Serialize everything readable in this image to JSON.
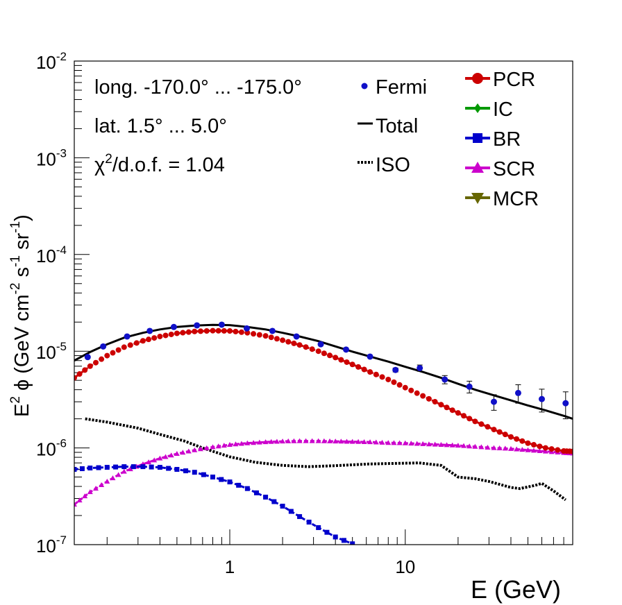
{
  "chart_data": {
    "type": "line",
    "xlabel": "E (GeV)",
    "ylabel_parts": [
      "E",
      "2",
      " ϕ (GeV cm",
      "-2",
      " s",
      "-1",
      " sr",
      "-1",
      ")"
    ],
    "x_scale": "log",
    "y_scale": "log",
    "xlim": [
      0.13,
      90
    ],
    "ylim": [
      1e-07,
      0.01
    ],
    "x_tick_labels": [
      {
        "value": 1,
        "label": "1"
      },
      {
        "value": 10,
        "label": "10"
      }
    ],
    "y_tick_labels": [
      {
        "exp": -7,
        "base": "10",
        "sup": "-7"
      },
      {
        "exp": -6,
        "base": "10",
        "sup": "-6"
      },
      {
        "exp": -5,
        "base": "10",
        "sup": "-5"
      },
      {
        "exp": -4,
        "base": "10",
        "sup": "-4"
      },
      {
        "exp": -3,
        "base": "10",
        "sup": "-3"
      },
      {
        "exp": -2,
        "base": "10",
        "sup": "-2"
      }
    ],
    "annotations": {
      "longitude": "long. -170.0° ... -175.0°",
      "latitude": "lat. 1.5° ... 5.0°",
      "chi_prefix": "χ",
      "chi_sup": "2",
      "chi_suffix": "/d.o.f. = 1.04"
    },
    "legend_left": [
      {
        "key": "fermi",
        "label": "Fermi",
        "color": "#1010c8",
        "marker": "circle"
      },
      {
        "key": "total",
        "label": "Total",
        "color": "#000000",
        "marker": "line"
      },
      {
        "key": "iso",
        "label": "ISO",
        "color": "#000000",
        "marker": "dotted"
      }
    ],
    "legend_right": [
      {
        "key": "pcr",
        "label": "PCR",
        "color": "#cc0000",
        "marker": "circle"
      },
      {
        "key": "ic",
        "label": "IC",
        "color": "#009900",
        "marker": "diamond"
      },
      {
        "key": "br",
        "label": "BR",
        "color": "#0000cc",
        "marker": "square"
      },
      {
        "key": "scr",
        "label": "SCR",
        "color": "#cc00cc",
        "marker": "triangle-up"
      },
      {
        "key": "mcr",
        "label": "MCR",
        "color": "#666600",
        "marker": "triangle-down"
      }
    ],
    "fermi": {
      "color": "#1010c8",
      "points": [
        {
          "x": 0.155,
          "y": 8.7e-06,
          "err": 0
        },
        {
          "x": 0.19,
          "y": 1.12e-05,
          "err": 0
        },
        {
          "x": 0.26,
          "y": 1.42e-05,
          "err": 0
        },
        {
          "x": 0.35,
          "y": 1.62e-05,
          "err": 0
        },
        {
          "x": 0.48,
          "y": 1.78e-05,
          "err": 0
        },
        {
          "x": 0.65,
          "y": 1.85e-05,
          "err": 0
        },
        {
          "x": 0.9,
          "y": 1.88e-05,
          "err": 0
        },
        {
          "x": 1.25,
          "y": 1.72e-05,
          "err": 0
        },
        {
          "x": 1.75,
          "y": 1.62e-05,
          "err": 0
        },
        {
          "x": 2.4,
          "y": 1.42e-05,
          "err": 0
        },
        {
          "x": 3.3,
          "y": 1.18e-05,
          "err": 0
        },
        {
          "x": 4.6,
          "y": 1.04e-05,
          "err": 0
        },
        {
          "x": 6.3,
          "y": 8.8e-06,
          "err": 0
        },
        {
          "x": 8.8,
          "y": 6.4e-06,
          "err": 3e-07
        },
        {
          "x": 12.1,
          "y": 6.7e-06,
          "err": 5e-07
        },
        {
          "x": 16.8,
          "y": 5.1e-06,
          "err": 5e-07
        },
        {
          "x": 23.2,
          "y": 4.3e-06,
          "err": 6e-07
        },
        {
          "x": 32.0,
          "y": 3e-06,
          "err": 5.5e-07
        },
        {
          "x": 44.0,
          "y": 3.7e-06,
          "err": 8e-07
        },
        {
          "x": 60.0,
          "y": 3.2e-06,
          "err": 8.5e-07
        },
        {
          "x": 82.0,
          "y": 2.9e-06,
          "err": 9e-07
        }
      ]
    },
    "total": {
      "color": "#000000",
      "x": [
        0.13,
        0.16,
        0.2,
        0.25,
        0.32,
        0.4,
        0.5,
        0.63,
        0.8,
        1.0,
        1.26,
        1.6,
        2.0,
        2.5,
        3.2,
        4.0,
        5.0,
        6.3,
        8.0,
        10,
        12.6,
        16,
        20,
        25,
        32,
        40,
        50,
        63,
        80,
        90
      ],
      "y": [
        8e-06,
        9.8e-06,
        1.18e-05,
        1.38e-05,
        1.55e-05,
        1.68e-05,
        1.78e-05,
        1.84e-05,
        1.87e-05,
        1.86e-05,
        1.78e-05,
        1.68e-05,
        1.55e-05,
        1.42e-05,
        1.27e-05,
        1.12e-05,
        9.9e-06,
        8.8e-06,
        7.8e-06,
        6.9e-06,
        6.1e-06,
        5.3e-06,
        4.6e-06,
        4e-06,
        3.5e-06,
        3.1e-06,
        2.75e-06,
        2.45e-06,
        2.15e-06,
        2e-06
      ]
    },
    "iso": {
      "color": "#000000",
      "x": [
        0.15,
        0.2,
        0.3,
        0.4,
        0.55,
        0.7,
        1.0,
        1.4,
        2.0,
        2.8,
        4.0,
        6.0,
        8.0,
        12.0,
        16.0,
        20.0,
        25.0,
        30.0,
        40.0,
        45.0,
        55.0,
        60.0,
        70.0,
        82.0
      ],
      "y": [
        2e-06,
        1.85e-06,
        1.6e-06,
        1.38e-06,
        1.18e-06,
        1e-06,
        8.1e-07,
        7.1e-07,
        6.6e-07,
        6.4e-07,
        6.55e-07,
        6.8e-07,
        6.9e-07,
        7e-07,
        6.6e-07,
        5e-07,
        4.8e-07,
        4.5e-07,
        3.9e-07,
        3.8e-07,
        4.1e-07,
        4.3e-07,
        3.6e-07,
        2.9e-07
      ]
    },
    "pcr": {
      "color": "#cc0000",
      "x": [
        0.13,
        0.16,
        0.2,
        0.25,
        0.32,
        0.4,
        0.5,
        0.63,
        0.8,
        1.0,
        1.26,
        1.6,
        2.0,
        2.5,
        3.2,
        4.0,
        5.0,
        6.3,
        8.0,
        10,
        12.6,
        16,
        20,
        25,
        32,
        40,
        50,
        63,
        80,
        90
      ],
      "y": [
        5.3e-06,
        7e-06,
        9e-06,
        1.1e-05,
        1.28e-05,
        1.42e-05,
        1.53e-05,
        1.6e-05,
        1.63e-05,
        1.62e-05,
        1.55e-05,
        1.44e-05,
        1.3e-05,
        1.16e-05,
        1e-05,
        8.6e-06,
        7.3e-06,
        6.1e-06,
        5.1e-06,
        4.2e-06,
        3.45e-06,
        2.8e-06,
        2.3e-06,
        1.88e-06,
        1.55e-06,
        1.3e-06,
        1.12e-06,
        1e-06,
        9.3e-07,
        9.2e-07
      ]
    },
    "br": {
      "color": "#0000cc",
      "x": [
        0.13,
        0.16,
        0.2,
        0.25,
        0.32,
        0.4,
        0.5,
        0.63,
        0.8,
        1.0,
        1.26,
        1.6,
        2.0,
        2.5,
        3.2,
        4.0,
        5.0
      ],
      "y": [
        6e-07,
        6.2e-07,
        6.3e-07,
        6.4e-07,
        6.4e-07,
        6.3e-07,
        6e-07,
        5.6e-07,
        5e-07,
        4.45e-07,
        3.8e-07,
        3.1e-07,
        2.5e-07,
        1.95e-07,
        1.5e-07,
        1.2e-07,
        1.02e-07
      ]
    },
    "scr": {
      "color": "#cc00cc",
      "x": [
        0.13,
        0.16,
        0.2,
        0.25,
        0.32,
        0.4,
        0.5,
        0.63,
        0.8,
        1.0,
        1.26,
        1.6,
        2.0,
        2.5,
        3.2,
        4.0,
        5.0,
        6.3,
        8.0,
        10,
        12.6,
        16,
        20,
        25,
        32,
        40,
        50,
        63,
        80,
        90
      ],
      "y": [
        2.6e-07,
        3.5e-07,
        4.5e-07,
        5.7e-07,
        6.8e-07,
        7.8e-07,
        8.7e-07,
        9.5e-07,
        1.02e-06,
        1.08e-06,
        1.12e-06,
        1.15e-06,
        1.17e-06,
        1.18e-06,
        1.18e-06,
        1.17e-06,
        1.16e-06,
        1.15e-06,
        1.13e-06,
        1.12e-06,
        1.1e-06,
        1.08e-06,
        1.06e-06,
        1.03e-06,
        1e-06,
        9.8e-07,
        9.5e-07,
        9.2e-07,
        8.9e-07,
        8.8e-07
      ]
    }
  }
}
